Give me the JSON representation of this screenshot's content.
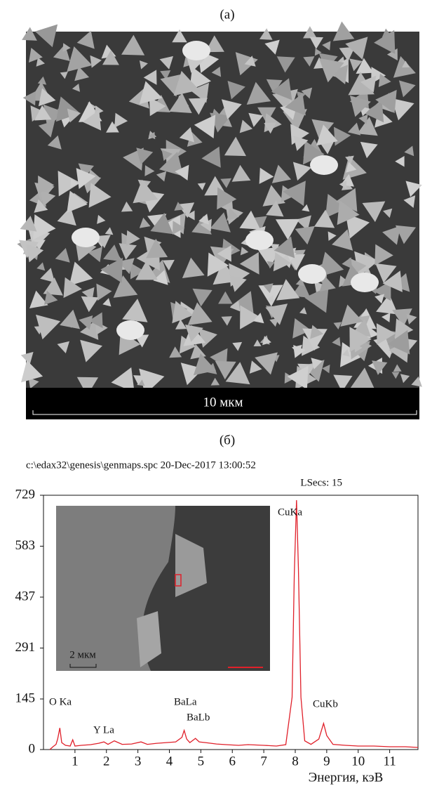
{
  "panel_a": {
    "label": "(а)",
    "scale_bar": "10 мкм"
  },
  "chart_data": {
    "type": "line",
    "label": "(б)",
    "header": "c:\\edax32\\genesis\\genmaps.spc 20-Dec-2017 13:00:52",
    "lsecs": "LSecs: 15",
    "x_label": "Энергия, кэВ",
    "inset_scale": "2 мкм",
    "annotations": [
      "O Ka",
      "Y La",
      "BaLa",
      "BaLb",
      "CuKa",
      "CuKb"
    ],
    "x": [
      0.2,
      0.3,
      0.4,
      0.45,
      0.52,
      0.58,
      0.7,
      0.85,
      0.93,
      1.0,
      1.2,
      1.5,
      1.75,
      1.92,
      2.05,
      2.25,
      2.5,
      2.8,
      3.1,
      3.3,
      3.6,
      3.9,
      4.2,
      4.4,
      4.47,
      4.55,
      4.65,
      4.83,
      4.95,
      5.15,
      5.5,
      5.8,
      6.2,
      6.5,
      7.0,
      7.4,
      7.7,
      7.9,
      7.97,
      8.04,
      8.1,
      8.18,
      8.3,
      8.5,
      8.75,
      8.9,
      9.0,
      9.2,
      9.6,
      10.0,
      10.5,
      11.0,
      11.5,
      11.9
    ],
    "values": [
      0,
      8,
      15,
      30,
      62,
      20,
      12,
      10,
      28,
      10,
      12,
      14,
      18,
      22,
      15,
      25,
      15,
      16,
      22,
      15,
      18,
      20,
      22,
      35,
      55,
      30,
      20,
      32,
      22,
      20,
      16,
      14,
      12,
      14,
      12,
      10,
      14,
      150,
      500,
      715,
      520,
      150,
      25,
      15,
      30,
      75,
      40,
      15,
      12,
      10,
      10,
      8,
      8,
      6
    ],
    "color": "#e0202a",
    "xlim": [
      0,
      11.9
    ],
    "ylim": [
      0,
      729
    ],
    "xticks": [
      1,
      2,
      3,
      4,
      5,
      6,
      7,
      8,
      9,
      10,
      11
    ],
    "yticks": [
      0,
      145,
      291,
      437,
      583,
      729
    ]
  }
}
